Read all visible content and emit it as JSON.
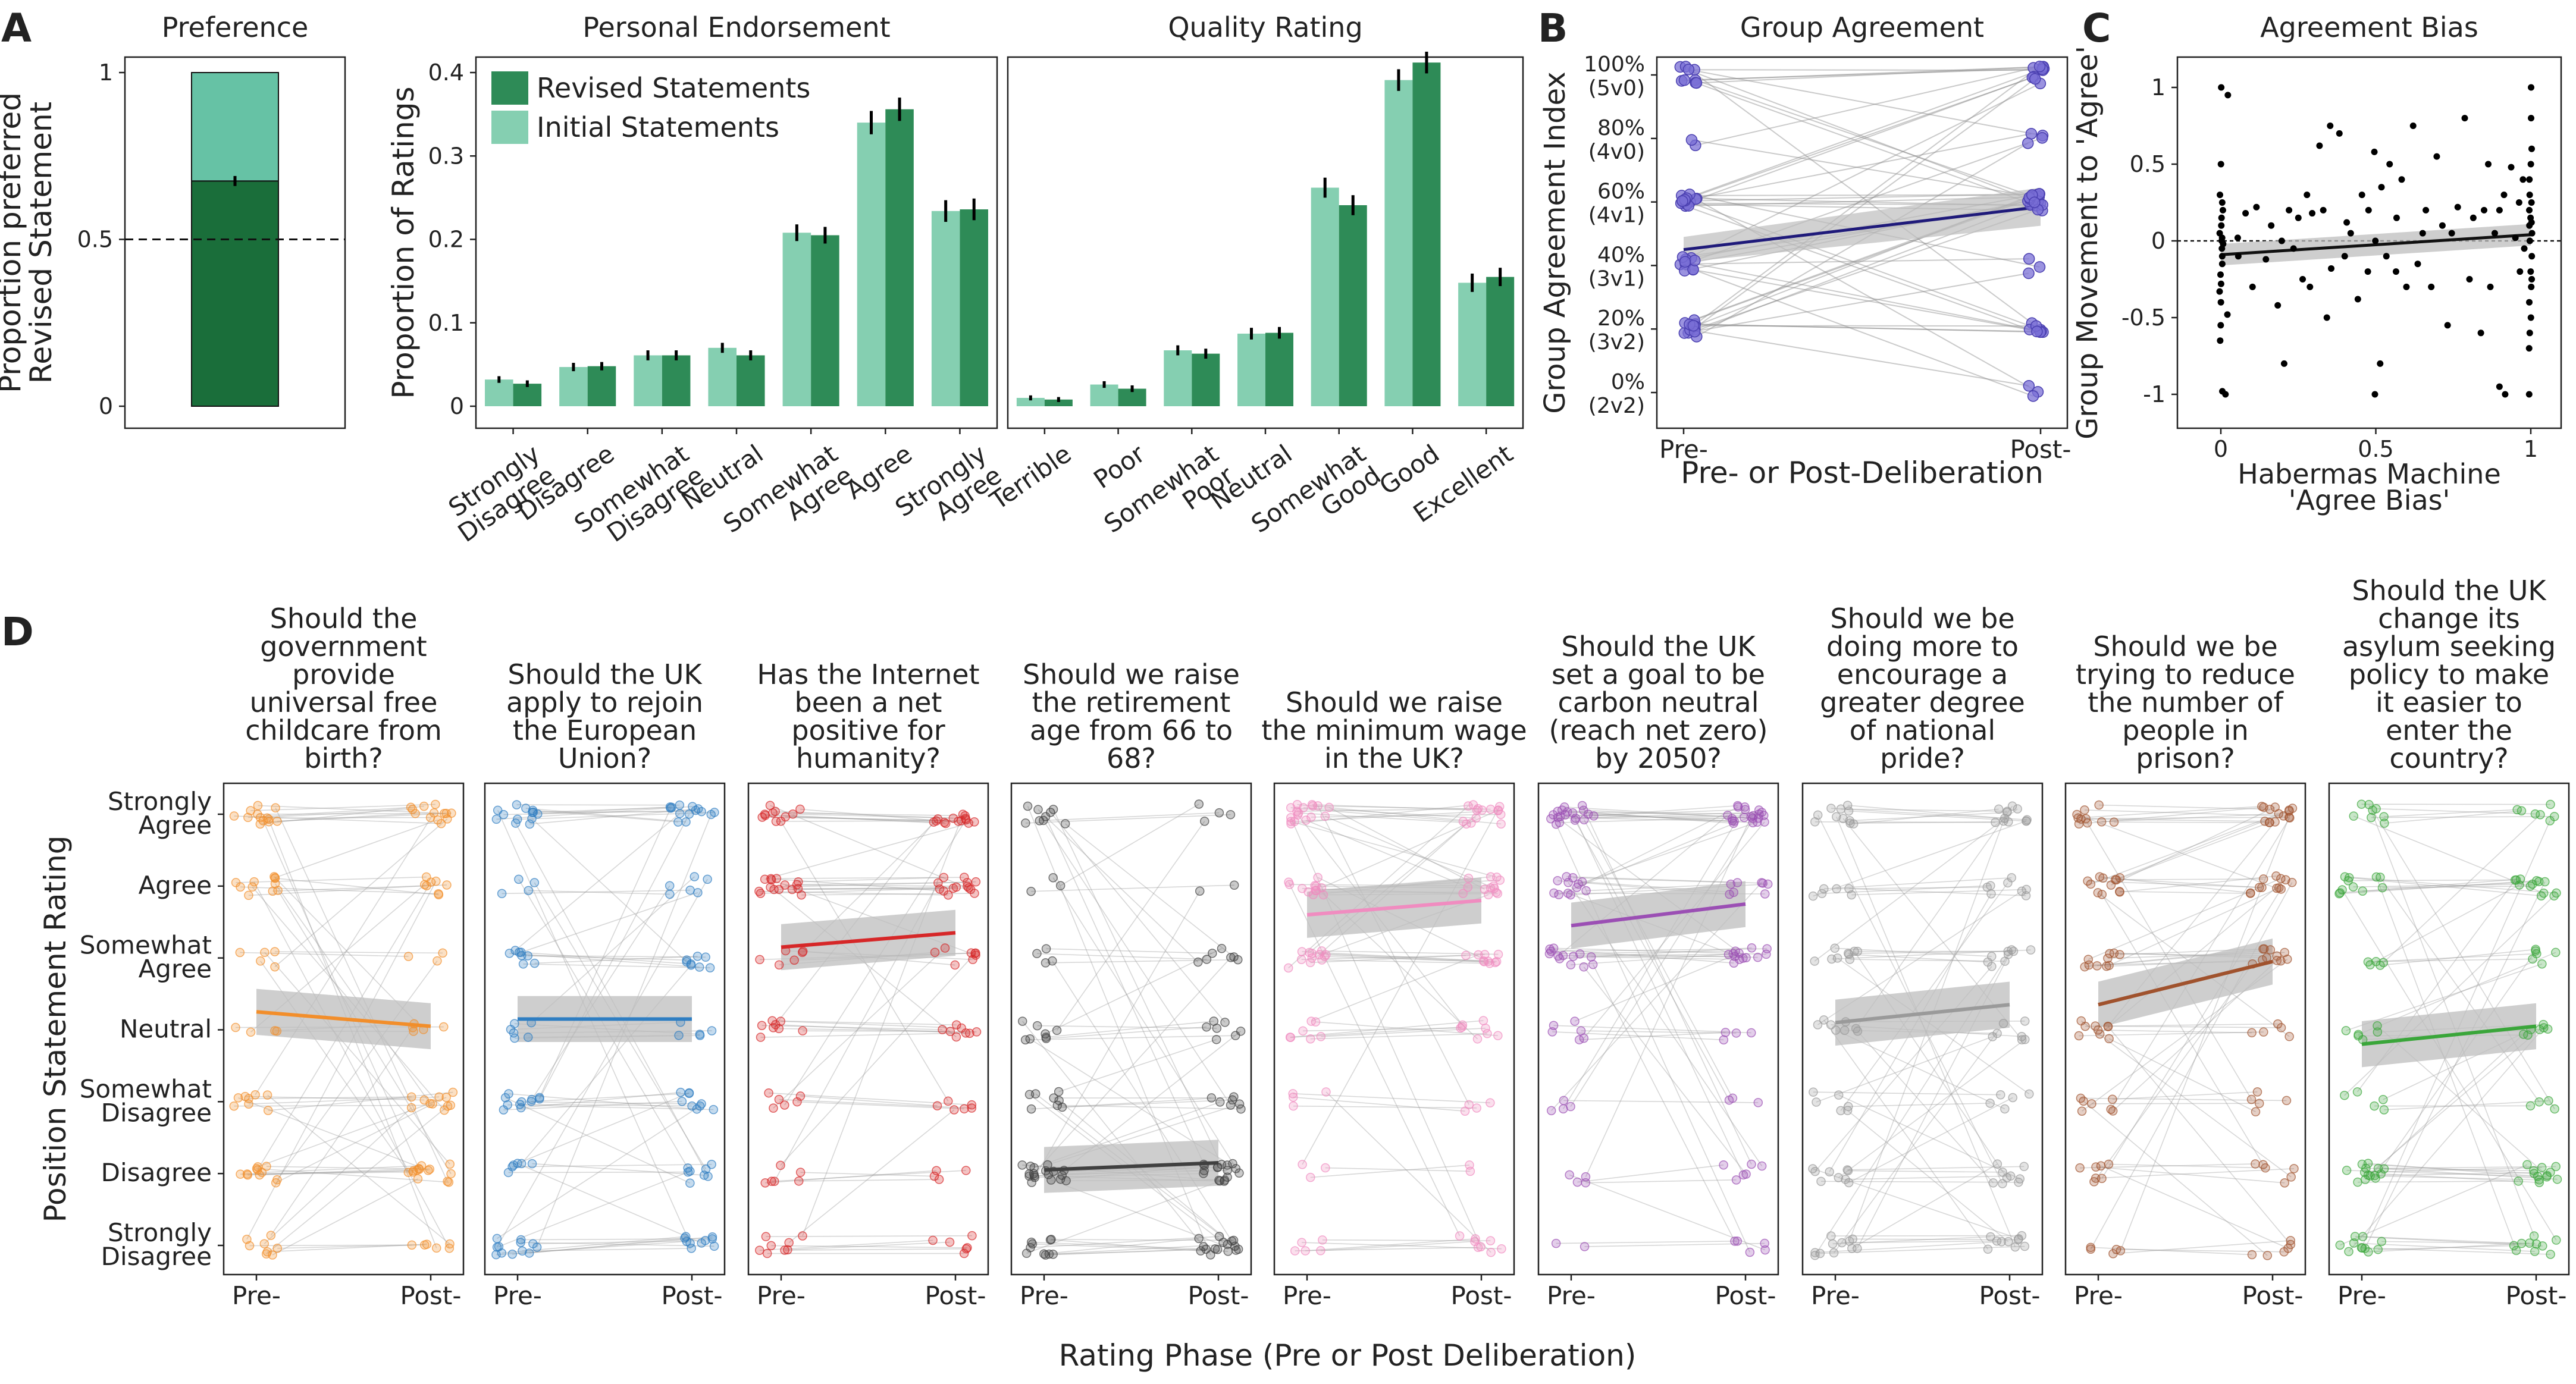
{
  "panel_labels": [
    "A",
    "B",
    "C",
    "D"
  ],
  "colors": {
    "revised": "#2e8b57",
    "initial": "#85cfb1",
    "pref_bottom": "#1a6e3a",
    "pref_top": "#66c2a5",
    "groupB_points": "#7a6fd6",
    "groupB_line": "#1f1a7a",
    "ci_band": "#bdbdbd"
  },
  "chart_data": [
    {
      "id": "preference",
      "type": "bar",
      "title": "Preference",
      "ylabel": "Proportion preferred\nRevised Statement",
      "ylim": [
        0,
        1
      ],
      "yticks": [
        "0",
        "0.5",
        "1"
      ],
      "segments": [
        {
          "name": "Revised",
          "value": 0.675
        },
        {
          "name": "Initial",
          "value": 0.325
        }
      ],
      "reference_line": 0.5,
      "error": 0.015
    },
    {
      "id": "personal_endorsement",
      "type": "bar",
      "title": "Personal Endorsement",
      "ylabel": "Proportion of Ratings",
      "ylim": [
        0,
        0.43
      ],
      "yticks": [
        "0",
        "0.1",
        "0.2",
        "0.3",
        "0.4"
      ],
      "categories": [
        "Strongly\nDisagree",
        "Disagree",
        "Somewhat\nDisagree",
        "Neutral",
        "Somewhat\nAgree",
        "Agree",
        "Strongly\nAgree"
      ],
      "series": [
        {
          "name": "Initial Statements",
          "values": [
            0.032,
            0.047,
            0.061,
            0.07,
            0.208,
            0.34,
            0.234
          ],
          "errors": [
            0.004,
            0.005,
            0.006,
            0.006,
            0.01,
            0.014,
            0.013
          ]
        },
        {
          "name": "Revised Statements",
          "values": [
            0.027,
            0.048,
            0.061,
            0.061,
            0.205,
            0.356,
            0.236
          ],
          "errors": [
            0.004,
            0.005,
            0.006,
            0.006,
            0.01,
            0.014,
            0.013
          ]
        }
      ],
      "legend": "top-left"
    },
    {
      "id": "quality_rating",
      "type": "bar",
      "title": "Quality Rating",
      "ylim": [
        0,
        0.43
      ],
      "categories": [
        "Terrible",
        "Poor",
        "Somewhat\nPoor",
        "Neutral",
        "Somewhat\nGood",
        "Good",
        "Excellent"
      ],
      "series": [
        {
          "name": "Initial Statements",
          "values": [
            0.01,
            0.026,
            0.067,
            0.087,
            0.262,
            0.391,
            0.148
          ],
          "errors": [
            0.003,
            0.004,
            0.006,
            0.007,
            0.012,
            0.013,
            0.011
          ]
        },
        {
          "name": "Revised Statements",
          "values": [
            0.008,
            0.021,
            0.063,
            0.088,
            0.241,
            0.412,
            0.155
          ],
          "errors": [
            0.003,
            0.004,
            0.006,
            0.007,
            0.012,
            0.013,
            0.011
          ]
        }
      ]
    },
    {
      "id": "group_agreement",
      "type": "scatter",
      "title": "Group Agreement",
      "xlabel": "Pre- or Post-Deliberation",
      "ylabel": "Group Agreement Index",
      "x_categories": [
        "Pre-",
        "Post-"
      ],
      "ylim": [
        0,
        1
      ],
      "yticks": [
        {
          "pct": "0%",
          "split": "(2v2)",
          "value": 0
        },
        {
          "pct": "20%",
          "split": "(3v2)",
          "value": 0.2
        },
        {
          "pct": "40%",
          "split": "(3v1)",
          "value": 0.4
        },
        {
          "pct": "60%",
          "split": "(4v1)",
          "value": 0.6
        },
        {
          "pct": "80%",
          "split": "(4v0)",
          "value": 0.8
        },
        {
          "pct": "100%",
          "split": "(5v0)",
          "value": 1.0
        }
      ],
      "trend": {
        "pre": 0.45,
        "post": 0.585
      },
      "pairs": [
        [
          1.0,
          1.0
        ],
        [
          1.0,
          0.6
        ],
        [
          1.0,
          0.6
        ],
        [
          1.0,
          1.0
        ],
        [
          1.0,
          0.2
        ],
        [
          1.0,
          1.0
        ],
        [
          1.0,
          0.6
        ],
        [
          1.0,
          0.8
        ],
        [
          1.0,
          1.0
        ],
        [
          0.8,
          1.0
        ],
        [
          0.8,
          0.6
        ],
        [
          0.6,
          0.6
        ],
        [
          0.6,
          1.0
        ],
        [
          0.6,
          0.2
        ],
        [
          0.6,
          0.6
        ],
        [
          0.6,
          0.0
        ],
        [
          0.6,
          0.6
        ],
        [
          0.6,
          0.8
        ],
        [
          0.6,
          0.4
        ],
        [
          0.6,
          1.0
        ],
        [
          0.6,
          0.6
        ],
        [
          0.6,
          0.6
        ],
        [
          0.6,
          0.2
        ],
        [
          0.6,
          1.0
        ],
        [
          0.6,
          0.6
        ],
        [
          0.4,
          0.6
        ],
        [
          0.4,
          0.6
        ],
        [
          0.4,
          0.2
        ],
        [
          0.4,
          1.0
        ],
        [
          0.4,
          0.4
        ],
        [
          0.4,
          0.6
        ],
        [
          0.4,
          0.0
        ],
        [
          0.4,
          0.6
        ],
        [
          0.4,
          0.8
        ],
        [
          0.4,
          0.2
        ],
        [
          0.2,
          0.6
        ],
        [
          0.2,
          0.2
        ],
        [
          0.2,
          1.0
        ],
        [
          0.2,
          0.6
        ],
        [
          0.2,
          0.4
        ],
        [
          0.2,
          0.0
        ],
        [
          0.2,
          0.6
        ],
        [
          0.2,
          0.2
        ],
        [
          0.2,
          0.6
        ],
        [
          0.2,
          0.8
        ],
        [
          0.2,
          0.6
        ],
        [
          0.2,
          0.2
        ],
        [
          0.2,
          1.0
        ]
      ]
    },
    {
      "id": "agreement_bias",
      "type": "scatter",
      "title": "Agreement Bias",
      "xlabel": "Habermas Machine\n'Agree Bias'",
      "ylabel": "Group Movement to 'Agree'",
      "xlim": [
        -0.07,
        1.07
      ],
      "ylim": [
        -1.12,
        1.12
      ],
      "xticks": [
        "0",
        "0.5",
        "1"
      ],
      "yticks": [
        "-1",
        "-0.5",
        "0",
        "0.5",
        "1"
      ],
      "trend": {
        "x": [
          0,
          1
        ],
        "y": [
          -0.09,
          0.04
        ]
      },
      "points": [
        [
          0.0,
          0.02
        ],
        [
          0.0,
          -0.05
        ],
        [
          0.0,
          0.25
        ],
        [
          0.0,
          -0.22
        ],
        [
          0.0,
          0.1
        ],
        [
          0.0,
          -0.33
        ],
        [
          0.0,
          0.5
        ],
        [
          0.0,
          -0.1
        ],
        [
          0.0,
          -0.55
        ],
        [
          0.0,
          0.0
        ],
        [
          0.0,
          -0.65
        ],
        [
          0.0,
          0.3
        ],
        [
          0.0,
          -0.98
        ],
        [
          0.0,
          1.0
        ],
        [
          0.0,
          -0.4
        ],
        [
          0.0,
          0.15
        ],
        [
          0.0,
          -0.15
        ],
        [
          0.0,
          0.05
        ],
        [
          0.0,
          -0.28
        ],
        [
          0.01,
          0.2
        ],
        [
          0.01,
          -0.02
        ],
        [
          0.02,
          0.95
        ],
        [
          0.02,
          -1.0
        ],
        [
          0.02,
          -0.48
        ],
        [
          0.05,
          0.02
        ],
        [
          0.06,
          -0.1
        ],
        [
          0.08,
          0.18
        ],
        [
          0.1,
          -0.3
        ],
        [
          0.12,
          0.22
        ],
        [
          0.14,
          -0.12
        ],
        [
          0.16,
          0.1
        ],
        [
          0.18,
          -0.42
        ],
        [
          0.2,
          0.0
        ],
        [
          0.21,
          -0.8
        ],
        [
          0.22,
          0.2
        ],
        [
          0.23,
          -0.05
        ],
        [
          0.25,
          0.15
        ],
        [
          0.26,
          -0.25
        ],
        [
          0.28,
          0.3
        ],
        [
          0.29,
          -0.3
        ],
        [
          0.3,
          0.18
        ],
        [
          0.32,
          0.62
        ],
        [
          0.33,
          0.2
        ],
        [
          0.34,
          -0.5
        ],
        [
          0.35,
          0.75
        ],
        [
          0.36,
          -0.18
        ],
        [
          0.38,
          0.7
        ],
        [
          0.4,
          -0.1
        ],
        [
          0.41,
          0.12
        ],
        [
          0.42,
          0.05
        ],
        [
          0.44,
          -0.38
        ],
        [
          0.46,
          0.3
        ],
        [
          0.47,
          -0.2
        ],
        [
          0.48,
          0.2
        ],
        [
          0.5,
          0.58
        ],
        [
          0.5,
          -1.0
        ],
        [
          0.5,
          0.0
        ],
        [
          0.51,
          -0.8
        ],
        [
          0.52,
          0.35
        ],
        [
          0.53,
          -0.1
        ],
        [
          0.55,
          0.5
        ],
        [
          0.56,
          -0.2
        ],
        [
          0.57,
          0.15
        ],
        [
          0.58,
          0.4
        ],
        [
          0.6,
          -0.3
        ],
        [
          0.62,
          0.75
        ],
        [
          0.63,
          -0.15
        ],
        [
          0.65,
          0.05
        ],
        [
          0.66,
          0.2
        ],
        [
          0.68,
          -0.3
        ],
        [
          0.7,
          0.55
        ],
        [
          0.72,
          0.1
        ],
        [
          0.73,
          -0.55
        ],
        [
          0.75,
          0.05
        ],
        [
          0.77,
          0.22
        ],
        [
          0.79,
          0.8
        ],
        [
          0.8,
          -0.25
        ],
        [
          0.82,
          0.15
        ],
        [
          0.84,
          -0.6
        ],
        [
          0.85,
          0.2
        ],
        [
          0.86,
          0.5
        ],
        [
          0.87,
          -0.3
        ],
        [
          0.88,
          0.05
        ],
        [
          0.9,
          0.2
        ],
        [
          0.9,
          -0.95
        ],
        [
          0.91,
          0.3
        ],
        [
          0.92,
          -1.0
        ],
        [
          0.94,
          0.48
        ],
        [
          0.95,
          0.02
        ],
        [
          0.96,
          0.25
        ],
        [
          0.97,
          -0.2
        ],
        [
          0.98,
          0.4
        ],
        [
          1.0,
          0.05
        ],
        [
          1.0,
          0.5
        ],
        [
          1.0,
          -0.5
        ],
        [
          1.0,
          0.2
        ],
        [
          1.0,
          -0.2
        ],
        [
          1.0,
          1.0
        ],
        [
          1.0,
          -0.7
        ],
        [
          1.0,
          0.3
        ],
        [
          1.0,
          -0.4
        ],
        [
          1.0,
          0.6
        ],
        [
          1.0,
          -0.1
        ],
        [
          1.0,
          0.12
        ],
        [
          1.0,
          -0.3
        ],
        [
          1.0,
          0.8
        ],
        [
          1.0,
          -0.6
        ],
        [
          1.0,
          0.15
        ],
        [
          1.0,
          0.4
        ],
        [
          1.0,
          -1.0
        ],
        [
          1.0,
          0.0
        ],
        [
          1.0,
          0.25
        ],
        [
          1.0,
          -0.25
        ],
        [
          0.99,
          0.1
        ],
        [
          0.98,
          -0.05
        ]
      ]
    },
    {
      "id": "position_ratings",
      "type": "scatter",
      "xlabel": "Rating Phase (Pre or Post Deliberation)",
      "ylabel": "Position Statement Rating",
      "x_categories": [
        "Pre-",
        "Post-"
      ],
      "y_categories": [
        "Strongly\nDisagree",
        "Disagree",
        "Somewhat\nDisagree",
        "Neutral",
        "Somewhat\nAgree",
        "Agree",
        "Strongly\nAgree"
      ],
      "y_range": [
        1,
        7
      ],
      "panels": [
        {
          "question": "Should the\ngovernment\nprovide\nuniversal free\nchildcare from\nbirth?",
          "color": "#f28e2b",
          "pre": 4.25,
          "post": 4.05,
          "weights": [
            2,
            2,
            2,
            1.5,
            1.5,
            3,
            3
          ]
        },
        {
          "question": "Should the UK\napply to rejoin\nthe European\nUnion?",
          "color": "#2f7ec2",
          "pre": 4.15,
          "post": 4.15,
          "weights": [
            3,
            2,
            2,
            1.5,
            1.5,
            2,
            3
          ]
        },
        {
          "question": "Has the Internet\nbeen a net\npositive for\nhumanity?",
          "color": "#d62728",
          "pre": 5.15,
          "post": 5.35,
          "weights": [
            1,
            1.5,
            2,
            2,
            2,
            4,
            3
          ]
        },
        {
          "question": "Should we raise\nthe retirement\nage from 66 to\n68?",
          "color": "#404040",
          "pre": 2.05,
          "post": 2.15,
          "weights": [
            5,
            3,
            2,
            2,
            2,
            1.5,
            1.5
          ]
        },
        {
          "question": "Should we raise\nthe minimum wage\nin the UK?",
          "color": "#f08cc0",
          "pre": 5.6,
          "post": 5.8,
          "weights": [
            1,
            1,
            1.5,
            1.5,
            2,
            3,
            4
          ]
        },
        {
          "question": "Should the UK\nset a goal to be\ncarbon neutral\n(reach net zero)\nby 2050?",
          "color": "#9b4fb4",
          "pre": 5.45,
          "post": 5.75,
          "weights": [
            1,
            1,
            1.5,
            1.5,
            2,
            3,
            5
          ]
        },
        {
          "question": "Should we be\ndoing more to\nencourage a\ngreater degree\nof national\npride?",
          "color": "#9a9a9a",
          "pre": 4.1,
          "post": 4.35,
          "weights": [
            2,
            2,
            2,
            2,
            2,
            2,
            3
          ]
        },
        {
          "question": "Should we be\ntrying to reduce\nthe number of\npeople in\nprison?",
          "color": "#a0522d",
          "pre": 4.35,
          "post": 4.95,
          "weights": [
            2,
            2,
            2,
            2,
            2,
            3,
            3
          ]
        },
        {
          "question": "Should the UK\nchange its\nasylum seeking\npolicy to make\nit easier to\nenter the\ncountry?",
          "color": "#3aa63a",
          "pre": 3.8,
          "post": 4.05,
          "weights": [
            4,
            3,
            2,
            2,
            1.5,
            2,
            1.5
          ]
        }
      ]
    }
  ]
}
